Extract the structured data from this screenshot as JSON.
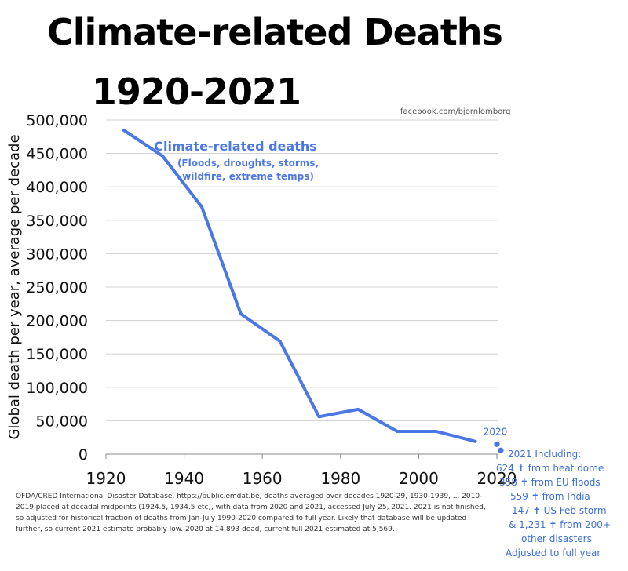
{
  "title_line1": "Climate-related Deaths",
  "title_line2": "1920-2021",
  "credit": "facebook.com/bjornlomborg",
  "colors": {
    "line": "#4a77e5",
    "annotation": "#3b6fd9"
  },
  "footnote": "OFDA/CRED International Disaster Database, https://public.emdat.be, deaths averaged over decades 1920-29, 1930-1939, ... 2010-2019 placed at decadal midpoints (1924.5, 1934.5 etc), with data from 2020 and 2021, accessed July 25, 2021. 2021 is not finished, so adjusted for historical fraction of deaths from Jan-July 1990-2020 compared to full year. Likely that database will be updated further, so current 2021 estimate probably low. 2020 at 14,893 dead, current full 2021 estimated at 5,569.",
  "note_2021": {
    "heading": "2021 Including:",
    "lines": [
      "624 ✝ from heat dome",
      "358 ✝ from EU floods",
      "559 ✝ from India",
      "147 ✝ US Feb storm",
      "& 1,231 ✝ from 200+",
      "other disasters",
      "Adjusted to full year"
    ]
  },
  "chart_data": {
    "type": "line",
    "title": "Climate-related Deaths 1920-2021",
    "ylabel": "Global death per year, average per decade",
    "xlabel": "",
    "xlim": [
      1920,
      2020
    ],
    "ylim": [
      0,
      500000
    ],
    "x_ticks": [
      "1920",
      "1940",
      "1960",
      "1980",
      "2000",
      "2020"
    ],
    "y_ticks": [
      "0",
      "50,000",
      "100,000",
      "150,000",
      "200,000",
      "250,000",
      "300,000",
      "350,000",
      "400,000",
      "450,000",
      "500,000"
    ],
    "series": [
      {
        "name": "Climate-related deaths",
        "subtitle": "(Floods, droughts, storms, wildfire, extreme temps)",
        "x": [
          1924.5,
          1934.5,
          1944.5,
          1954.5,
          1964.5,
          1974.5,
          1984.5,
          1994.5,
          2004.5,
          2014.5
        ],
        "values": [
          485000,
          446000,
          370000,
          210000,
          169000,
          56000,
          67000,
          34000,
          34000,
          19000
        ]
      }
    ],
    "points": [
      {
        "label": "2020",
        "x": 2020,
        "value": 14893
      },
      {
        "label": "",
        "x": 2021,
        "value": 5569
      }
    ]
  }
}
